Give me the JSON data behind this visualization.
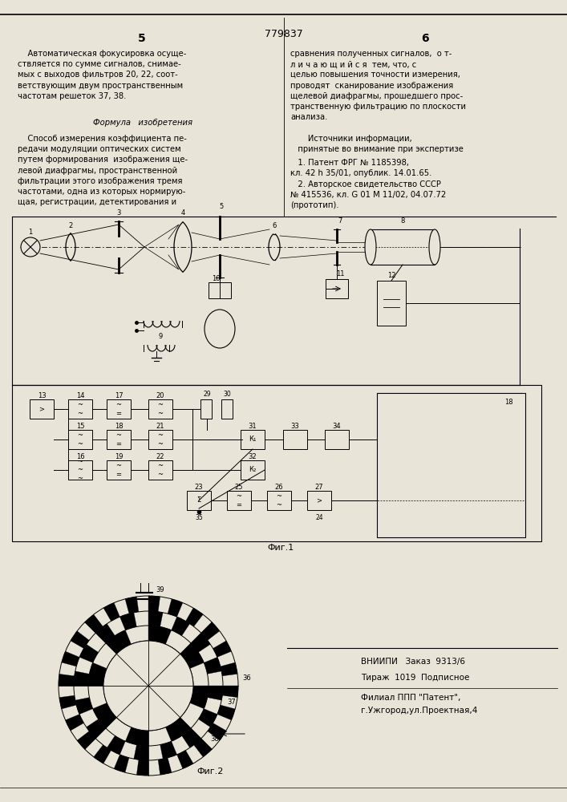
{
  "bg_color": "#e8e4d8",
  "page_color": "#e8e4d8",
  "title_number": "779837",
  "col_left_number": "5",
  "col_right_number": "6",
  "text_left_top": "    Автоматическая фокусировка осуще-\nствляется по сумме сигналов, снимае-\nмых с выходов фильтров 20, 22, соот-\nветствующим двум пространственным\nчастотам решеток 37, 38.",
  "text_formula": "Формула   изобретения",
  "text_formula_body": "    Способ измерения коэффициента пе-\nредачи модуляции оптических систем\nпутем формирования  изображения ще-\nлевой диафрагмы, пространственной\nфильтрации этого изображения тремя\nчастотами, одна из которых нормирую-\nщая, регистрации, детектирования и",
  "text_right_top": "сравнения полученных сигналов,  о т-\nл и ч а ю щ и й с я  тем, что, с\nцелью повышения точности измерения,\nпроводят  сканирование изображения\nщелевой диафрагмы, прошедшего прос-\nтранственную фильтрацию по плоскости\nанализа.",
  "text_sources_header": "       Источники информации,\n   принятые во внимание при экспертизе",
  "text_ref1": "   1. Патент ФРГ № 1185398,\nкл. 42 h 35/01, опублик. 14.01.65.",
  "text_ref2_line1": "   2. Авторское свидетельство СССР",
  "text_ref2_line2": "№ 415536, кл. G 01 М 11/02, 04.07.72",
  "text_ref2_line3": "(прототип).",
  "text_fig1": "Фиг.1",
  "text_fig2": "Фиг.2",
  "text_vnipi": "ВНИИПИ   Заказ  9313/6",
  "text_tirazh": "Тираж  1019  Подписное",
  "text_filial": "Филиал ППП \"Патент\",",
  "text_uzhgorod": "г.Ужгород,ул.Проектная,4",
  "font_size_main": 7.2,
  "font_size_header": 9,
  "font_size_small": 6.0
}
